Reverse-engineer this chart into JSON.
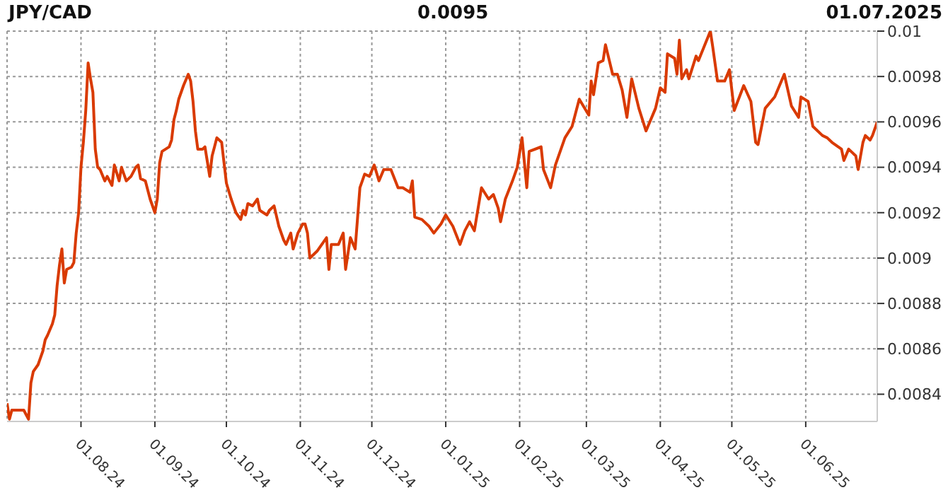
{
  "chart_data": {
    "type": "line",
    "title": "JPY/CAD",
    "subtitle": "0.0095",
    "annotations": [
      "01.07.2025"
    ],
    "x": [
      "2024-07-01",
      "2024-07-02",
      "2024-07-03",
      "2024-07-08",
      "2024-07-10",
      "2024-07-11",
      "2024-07-12",
      "2024-07-14",
      "2024-07-16",
      "2024-07-17",
      "2024-07-18",
      "2024-07-20",
      "2024-07-21",
      "2024-07-22",
      "2024-07-23",
      "2024-07-24",
      "2024-07-25",
      "2024-07-26",
      "2024-07-28",
      "2024-07-29",
      "2024-07-30",
      "2024-07-31",
      "2024-08-01",
      "2024-08-02",
      "2024-08-03",
      "2024-08-04",
      "2024-08-05",
      "2024-08-06",
      "2024-08-07",
      "2024-08-08",
      "2024-08-09",
      "2024-08-11",
      "2024-08-12",
      "2024-08-14",
      "2024-08-15",
      "2024-08-17",
      "2024-08-18",
      "2024-08-20",
      "2024-08-22",
      "2024-08-24",
      "2024-08-25",
      "2024-08-26",
      "2024-08-28",
      "2024-08-30",
      "2024-09-01",
      "2024-09-02",
      "2024-09-03",
      "2024-09-04",
      "2024-09-07",
      "2024-09-08",
      "2024-09-09",
      "2024-09-10",
      "2024-09-11",
      "2024-09-13",
      "2024-09-15",
      "2024-09-16",
      "2024-09-17",
      "2024-09-18",
      "2024-09-19",
      "2024-09-21",
      "2024-09-22",
      "2024-09-24",
      "2024-09-25",
      "2024-09-26",
      "2024-09-27",
      "2024-09-29",
      "2024-09-30",
      "2024-10-01",
      "2024-10-03",
      "2024-10-04",
      "2024-10-05",
      "2024-10-07",
      "2024-10-08",
      "2024-10-09",
      "2024-10-10",
      "2024-10-12",
      "2024-10-14",
      "2024-10-15",
      "2024-10-18",
      "2024-10-19",
      "2024-10-21",
      "2024-10-23",
      "2024-10-25",
      "2024-10-26",
      "2024-10-28",
      "2024-10-29",
      "2024-10-31",
      "2024-11-02",
      "2024-11-03",
      "2024-11-04",
      "2024-11-05",
      "2024-11-08",
      "2024-11-12",
      "2024-11-13",
      "2024-11-14",
      "2024-11-17",
      "2024-11-19",
      "2024-11-20",
      "2024-11-22",
      "2024-11-24",
      "2024-11-26",
      "2024-11-28",
      "2024-11-30",
      "2024-12-02",
      "2024-12-04",
      "2024-12-06",
      "2024-12-09",
      "2024-12-12",
      "2024-12-14",
      "2024-12-17",
      "2024-12-18",
      "2024-12-19",
      "2024-12-22",
      "2024-12-25",
      "2024-12-27",
      "2024-12-30",
      "2025-01-01",
      "2025-01-04",
      "2025-01-07",
      "2025-01-09",
      "2025-01-11",
      "2025-01-13",
      "2025-01-16",
      "2025-01-19",
      "2025-01-21",
      "2025-01-23",
      "2025-01-24",
      "2025-01-26",
      "2025-01-29",
      "2025-01-31",
      "2025-02-02",
      "2025-02-04",
      "2025-02-05",
      "2025-02-10",
      "2025-02-11",
      "2025-02-14",
      "2025-02-16",
      "2025-02-20",
      "2025-02-23",
      "2025-02-26",
      "2025-03-02",
      "2025-03-03",
      "2025-03-04",
      "2025-03-06",
      "2025-03-08",
      "2025-03-09",
      "2025-03-12",
      "2025-03-14",
      "2025-03-16",
      "2025-03-18",
      "2025-03-20",
      "2025-03-23",
      "2025-03-26",
      "2025-03-30",
      "2025-04-01",
      "2025-04-03",
      "2025-04-04",
      "2025-04-07",
      "2025-04-08",
      "2025-04-09",
      "2025-04-10",
      "2025-04-12",
      "2025-04-13",
      "2025-04-16",
      "2025-04-17",
      "2025-04-22",
      "2025-04-23",
      "2025-04-25",
      "2025-04-28",
      "2025-04-30",
      "2025-05-02",
      "2025-05-06",
      "2025-05-09",
      "2025-05-11",
      "2025-05-12",
      "2025-05-15",
      "2025-05-19",
      "2025-05-23",
      "2025-05-26",
      "2025-05-29",
      "2025-05-30",
      "2025-06-02",
      "2025-06-04",
      "2025-06-08",
      "2025-06-10",
      "2025-06-12",
      "2025-06-16",
      "2025-06-17",
      "2025-06-19",
      "2025-06-22",
      "2025-06-23",
      "2025-06-25",
      "2025-06-26",
      "2025-06-28",
      "2025-06-29",
      "2025-07-01"
    ],
    "series": [
      {
        "color": "#d93a00",
        "values": [
          0.00836,
          0.00829,
          0.00833,
          0.00833,
          0.00829,
          0.00845,
          0.0085,
          0.00853,
          0.00859,
          0.00864,
          0.00866,
          0.00871,
          0.00875,
          0.00888,
          0.00897,
          0.00904,
          0.00889,
          0.00895,
          0.00896,
          0.00898,
          0.00911,
          0.0092,
          0.0094,
          0.00951,
          0.00965,
          0.00986,
          0.00979,
          0.00973,
          0.00948,
          0.0094,
          0.00939,
          0.00934,
          0.00936,
          0.00932,
          0.00941,
          0.00934,
          0.0094,
          0.00934,
          0.00936,
          0.0094,
          0.00941,
          0.00935,
          0.00934,
          0.00926,
          0.0092,
          0.00926,
          0.00942,
          0.00947,
          0.00949,
          0.00952,
          0.00961,
          0.00965,
          0.0097,
          0.00976,
          0.00981,
          0.00978,
          0.00969,
          0.00956,
          0.00948,
          0.00948,
          0.00949,
          0.00936,
          0.00945,
          0.00949,
          0.00953,
          0.00951,
          0.00942,
          0.00933,
          0.00926,
          0.00923,
          0.0092,
          0.00917,
          0.00921,
          0.00919,
          0.00924,
          0.00923,
          0.00926,
          0.00921,
          0.00919,
          0.00921,
          0.00923,
          0.00914,
          0.00908,
          0.00906,
          0.00911,
          0.00904,
          0.00911,
          0.00915,
          0.00915,
          0.00911,
          0.009,
          0.00903,
          0.00909,
          0.00895,
          0.00906,
          0.00906,
          0.00911,
          0.00895,
          0.00909,
          0.00904,
          0.00931,
          0.00937,
          0.00936,
          0.00941,
          0.00934,
          0.00939,
          0.00939,
          0.00931,
          0.00931,
          0.00929,
          0.00934,
          0.00918,
          0.00917,
          0.00914,
          0.00911,
          0.00915,
          0.00919,
          0.00914,
          0.00906,
          0.00912,
          0.00916,
          0.00912,
          0.00931,
          0.00926,
          0.00928,
          0.00922,
          0.00916,
          0.00926,
          0.00934,
          0.0094,
          0.00953,
          0.00931,
          0.00947,
          0.00949,
          0.00939,
          0.00931,
          0.00941,
          0.00953,
          0.00958,
          0.0097,
          0.00963,
          0.00978,
          0.00972,
          0.00986,
          0.00987,
          0.00994,
          0.00981,
          0.00981,
          0.00974,
          0.00962,
          0.00979,
          0.00966,
          0.00956,
          0.00966,
          0.00975,
          0.00973,
          0.0099,
          0.00988,
          0.00981,
          0.00996,
          0.00979,
          0.00983,
          0.00979,
          0.00989,
          0.00987,
          0.01,
          0.00993,
          0.00978,
          0.00978,
          0.00983,
          0.00965,
          0.00976,
          0.00969,
          0.00951,
          0.0095,
          0.00966,
          0.00971,
          0.00981,
          0.00967,
          0.00962,
          0.00971,
          0.00969,
          0.00958,
          0.00954,
          0.00953,
          0.00951,
          0.00948,
          0.00943,
          0.00948,
          0.00945,
          0.00939,
          0.00951,
          0.00954,
          0.00952,
          0.00954,
          0.0096
        ]
      }
    ],
    "xlim": [
      "2024-07-01",
      "2025-07-01"
    ],
    "xticks": [
      {
        "value": "2024-08-01",
        "label": "01.08.24"
      },
      {
        "value": "2024-09-01",
        "label": "01.09.24"
      },
      {
        "value": "2024-10-01",
        "label": "01.10.24"
      },
      {
        "value": "2024-11-01",
        "label": "01.11.24"
      },
      {
        "value": "2024-12-01",
        "label": "01.12.24"
      },
      {
        "value": "2025-01-01",
        "label": "01.01.25"
      },
      {
        "value": "2025-02-01",
        "label": "01.02.25"
      },
      {
        "value": "2025-03-01",
        "label": "01.03.25"
      },
      {
        "value": "2025-04-01",
        "label": "01.04.25"
      },
      {
        "value": "2025-05-01",
        "label": "01.05.25"
      },
      {
        "value": "2025-06-01",
        "label": "01.06.25"
      }
    ],
    "ylim": [
      0.00828,
      0.01
    ],
    "yticks": [
      0.0084,
      0.0086,
      0.0088,
      0.009,
      0.0092,
      0.0094,
      0.0096,
      0.0098,
      0.01
    ],
    "grid": true,
    "marker": "none",
    "line_style": "solid"
  }
}
